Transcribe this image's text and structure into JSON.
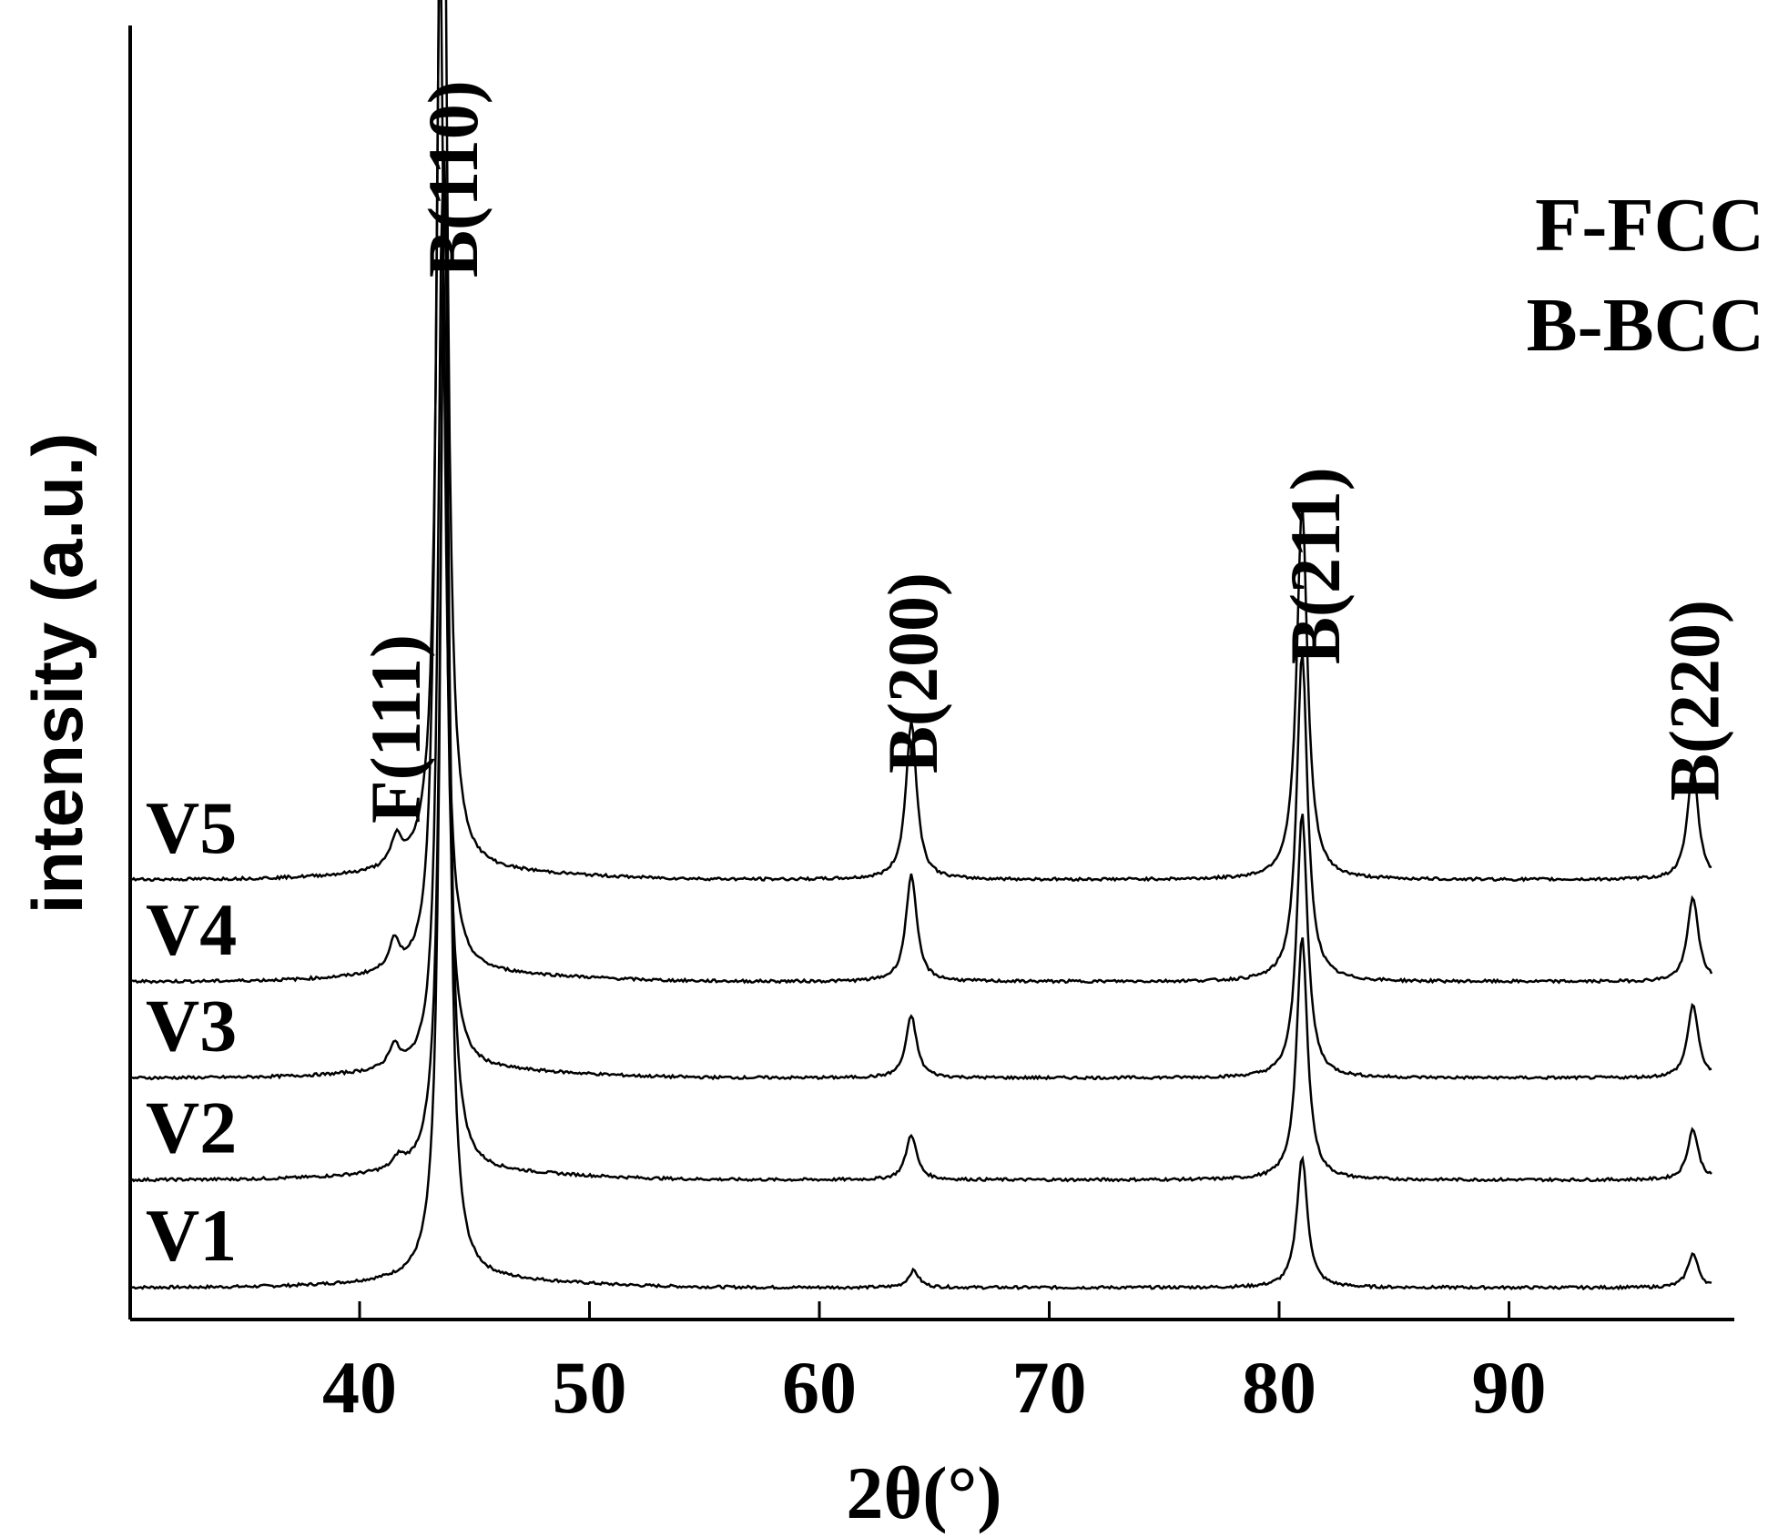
{
  "chart_data": {
    "type": "line",
    "xlabel": "2θ(°)",
    "ylabel": "intensity (a.u.)",
    "xlim": [
      30,
      99
    ],
    "x_ticks": [
      40,
      50,
      60,
      70,
      80,
      90
    ],
    "grid": false,
    "stacked_offset": true,
    "legend": {
      "placement": "top-right",
      "entries": [
        "F-FCC",
        "B-BCC"
      ]
    },
    "peak_labels": [
      {
        "label": "F(111)",
        "x": 41.5
      },
      {
        "label": "B(110)",
        "x": 44.0
      },
      {
        "label": "B(200)",
        "x": 64.0
      },
      {
        "label": "B(211)",
        "x": 81.5
      },
      {
        "label": "B(220)",
        "x": 98.0
      }
    ],
    "series": [
      {
        "name": "V1",
        "baseline": 0,
        "peaks": [
          {
            "x": 43.7,
            "height": 100
          },
          {
            "x": 64.1,
            "height": 1.5
          },
          {
            "x": 81.0,
            "height": 11.5
          },
          {
            "x": 98.0,
            "height": 3
          }
        ]
      },
      {
        "name": "V2",
        "baseline": 9.5,
        "peaks": [
          {
            "x": 41.7,
            "height": 1
          },
          {
            "x": 43.7,
            "height": 88
          },
          {
            "x": 64.0,
            "height": 4
          },
          {
            "x": 81.0,
            "height": 21.5
          },
          {
            "x": 98.0,
            "height": 4.5
          }
        ]
      },
      {
        "name": "V3",
        "baseline": 18.5,
        "peaks": [
          {
            "x": 41.5,
            "height": 2
          },
          {
            "x": 43.6,
            "height": 78
          },
          {
            "x": 64.0,
            "height": 5.5
          },
          {
            "x": 81.0,
            "height": 23.5
          },
          {
            "x": 98.0,
            "height": 6.5
          }
        ]
      },
      {
        "name": "V4",
        "baseline": 27,
        "peaks": [
          {
            "x": 41.5,
            "height": 2.5
          },
          {
            "x": 43.5,
            "height": 92
          },
          {
            "x": 64.0,
            "height": 9.5
          },
          {
            "x": 81.0,
            "height": 29
          },
          {
            "x": 98.0,
            "height": 7.5
          }
        ]
      },
      {
        "name": "V5",
        "baseline": 36,
        "peaks": [
          {
            "x": 41.6,
            "height": 2.5
          },
          {
            "x": 43.6,
            "height": 118
          },
          {
            "x": 64.0,
            "height": 14
          },
          {
            "x": 81.0,
            "height": 33
          },
          {
            "x": 98.0,
            "height": 10
          }
        ]
      }
    ]
  }
}
